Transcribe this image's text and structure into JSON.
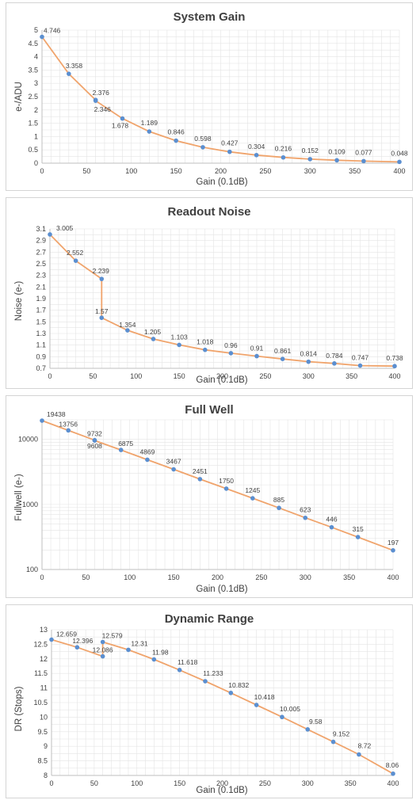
{
  "colors": {
    "line": "#f0a46c",
    "marker": "#5b8fd0",
    "grid": "#e4e4e4",
    "axis": "#bfbfbf",
    "text": "#404040"
  },
  "chart_data": [
    {
      "type": "line",
      "title": "System Gain",
      "xlabel": "Gain (0.1dB)",
      "ylabel": "e-/ADU",
      "x": [
        0,
        30,
        60,
        60,
        90,
        120,
        150,
        180,
        210,
        240,
        270,
        300,
        330,
        360,
        400
      ],
      "values": [
        4.746,
        3.358,
        2.376,
        2.346,
        1.678,
        1.189,
        0.846,
        0.598,
        0.427,
        0.304,
        0.216,
        0.152,
        0.109,
        0.077,
        0.048
      ],
      "labels": [
        "4.746",
        "3.358",
        "2.376",
        "2.346",
        "1.678",
        "1.189",
        "0.846",
        "0.598",
        "0.427",
        "0.304",
        "0.216",
        "0.152",
        "0.109",
        "0.077",
        "0.048"
      ],
      "xlim": [
        0,
        400
      ],
      "ylim": [
        0,
        5
      ],
      "yscale": "linear",
      "xticks": [
        0,
        50,
        100,
        150,
        200,
        250,
        300,
        350,
        400
      ],
      "yticks": [
        0,
        0.5,
        1,
        1.5,
        2,
        2.5,
        3,
        3.5,
        4,
        4.5,
        5
      ],
      "ytick_labels": [
        "0",
        "0.5",
        "1",
        "1.5",
        "2",
        "2.5",
        "3",
        "3.5",
        "4",
        "4.5",
        "5"
      ],
      "grid": true
    },
    {
      "type": "line",
      "title": "Readout Noise",
      "xlabel": "Gain (0.1dB)",
      "ylabel": "Noise (e-)",
      "x": [
        0,
        30,
        60,
        60,
        90,
        120,
        150,
        180,
        210,
        240,
        270,
        300,
        330,
        360,
        400
      ],
      "values": [
        3.005,
        2.552,
        2.239,
        1.57,
        1.354,
        1.205,
        1.103,
        1.018,
        0.96,
        0.91,
        0.861,
        0.814,
        0.784,
        0.747,
        0.738
      ],
      "labels": [
        "3.005",
        "2.552",
        "2.239",
        "1.57",
        "1.354",
        "1.205",
        "1.103",
        "1.018",
        "0.96",
        "0.91",
        "0.861",
        "0.814",
        "0.784",
        "0.747",
        "0.738"
      ],
      "xlim": [
        0,
        400
      ],
      "ylim": [
        0.7,
        3.1
      ],
      "yscale": "linear",
      "xticks": [
        0,
        50,
        100,
        150,
        200,
        250,
        300,
        350,
        400
      ],
      "yticks": [
        0.7,
        0.9,
        1.1,
        1.3,
        1.5,
        1.7,
        1.9,
        2.1,
        2.3,
        2.5,
        2.7,
        2.9,
        3.1
      ],
      "ytick_labels": [
        "0.7",
        "0.9",
        "1.1",
        "1.3",
        "1.5",
        "1.7",
        "1.9",
        "2.1",
        "2.3",
        "2.5",
        "2.7",
        "2.9",
        "3.1"
      ],
      "grid": true
    },
    {
      "type": "line",
      "title": "Full Well",
      "xlabel": "Gain (0.1dB)",
      "ylabel": "Fullwell (e-)",
      "x": [
        0,
        30,
        60,
        60,
        90,
        120,
        150,
        180,
        210,
        240,
        270,
        300,
        330,
        360,
        400
      ],
      "values": [
        19438,
        13756,
        9732,
        9608,
        6875,
        4869,
        3467,
        2451,
        1750,
        1245,
        885,
        623,
        446,
        315,
        197
      ],
      "labels": [
        "19438",
        "13756",
        "9732",
        "9608",
        "6875",
        "4869",
        "3467",
        "2451",
        "1750",
        "1245",
        "885",
        "623",
        "446",
        "315",
        "197"
      ],
      "xlim": [
        0,
        400
      ],
      "ylim": [
        100,
        20000
      ],
      "yscale": "log",
      "xticks": [
        0,
        50,
        100,
        150,
        200,
        250,
        300,
        350,
        400
      ],
      "yticks": [
        100,
        1000,
        10000
      ],
      "ytick_labels": [
        "100",
        "1000",
        "10000"
      ],
      "grid": true
    },
    {
      "type": "line",
      "title": "Dynamic Range",
      "xlabel": "Gain (0.1dB)",
      "ylabel": "DR (Stops)",
      "x": [
        0,
        30,
        60,
        60,
        90,
        120,
        150,
        180,
        210,
        240,
        270,
        300,
        330,
        360,
        400
      ],
      "values": [
        12.659,
        12.396,
        12.086,
        12.579,
        12.31,
        11.98,
        11.618,
        11.233,
        10.832,
        10.418,
        10.005,
        9.58,
        9.152,
        8.72,
        8.06
      ],
      "labels": [
        "12.659",
        "12.396",
        "12.086",
        "12.579",
        "12.31",
        "11.98",
        "11.618",
        "11.233",
        "10.832",
        "10.418",
        "10.005",
        "9.58",
        "9.152",
        "8.72",
        "8.06"
      ],
      "xlim": [
        0,
        400
      ],
      "ylim": [
        8,
        13
      ],
      "yscale": "linear",
      "xticks": [
        0,
        50,
        100,
        150,
        200,
        250,
        300,
        350,
        400
      ],
      "yticks": [
        8,
        8.5,
        9,
        9.5,
        10,
        10.5,
        11,
        11.5,
        12,
        12.5,
        13
      ],
      "ytick_labels": [
        "8",
        "8.5",
        "9",
        "9.5",
        "10",
        "10.5",
        "11",
        "11.5",
        "12",
        "12.5",
        "13"
      ],
      "grid": true
    }
  ]
}
